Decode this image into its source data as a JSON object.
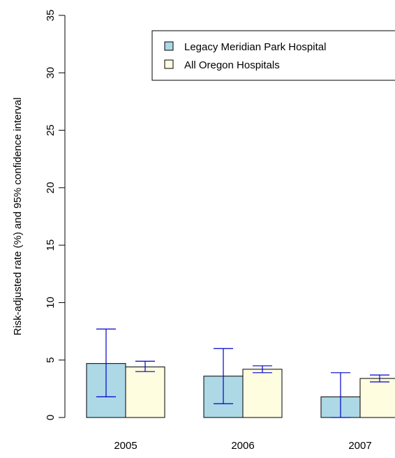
{
  "chart_data": {
    "type": "bar",
    "ylabel": "Risk-adjusted rate (%) and 95% confidence interval",
    "ylim": [
      0,
      35
    ],
    "yticks": [
      0,
      5,
      10,
      15,
      20,
      25,
      30,
      35
    ],
    "categories": [
      "2005",
      "2006",
      "2007"
    ],
    "series": [
      {
        "name": "Legacy Meridian Park Hospital",
        "color": "#add8e6",
        "values": [
          4.7,
          3.6,
          1.8
        ],
        "ci_low": [
          1.8,
          1.2,
          0.0
        ],
        "ci_high": [
          7.7,
          6.0,
          3.9
        ]
      },
      {
        "name": "All Oregon Hospitals",
        "color": "#fffde0",
        "values": [
          4.4,
          4.2,
          3.4
        ],
        "ci_low": [
          4.0,
          3.9,
          3.1
        ],
        "ci_high": [
          4.9,
          4.5,
          3.7
        ]
      }
    ],
    "error_bar_color": "#0000cc",
    "legend_position": "top-right"
  }
}
